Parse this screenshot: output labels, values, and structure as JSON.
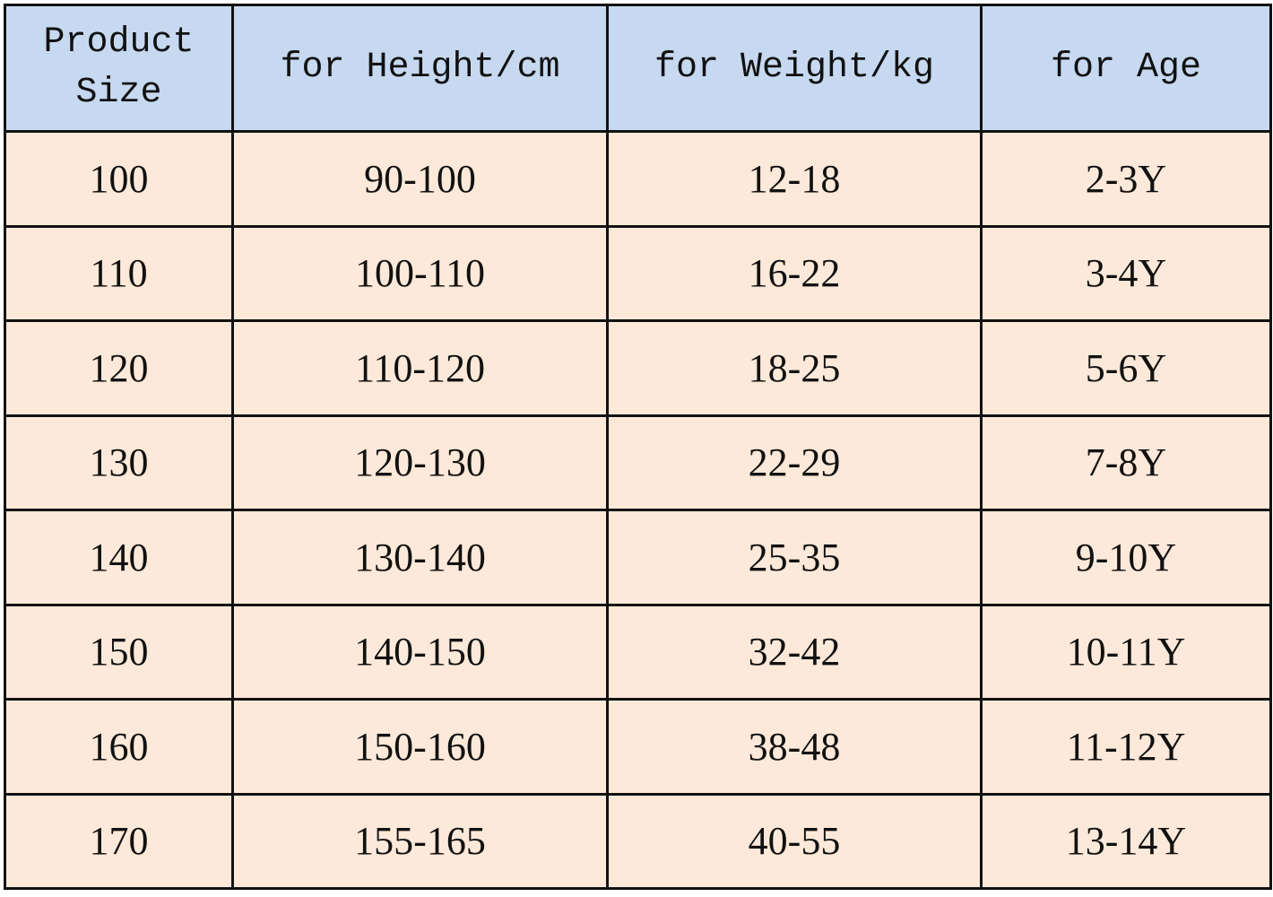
{
  "table": {
    "header": [
      "Product Size",
      "for Height/cm",
      "for Weight/kg",
      "for Age"
    ],
    "rows": [
      [
        "100",
        "90-100",
        "12-18",
        "2-3Y"
      ],
      [
        "110",
        "100-110",
        "16-22",
        "3-4Y"
      ],
      [
        "120",
        "110-120",
        "18-25",
        "5-6Y"
      ],
      [
        "130",
        "120-130",
        "22-29",
        "7-8Y"
      ],
      [
        "140",
        "130-140",
        "25-35",
        "9-10Y"
      ],
      [
        "150",
        "140-150",
        "32-42",
        "10-11Y"
      ],
      [
        "160",
        "150-160",
        "38-48",
        "11-12Y"
      ],
      [
        "170",
        "155-165",
        "40-55",
        "13-14Y"
      ]
    ]
  }
}
